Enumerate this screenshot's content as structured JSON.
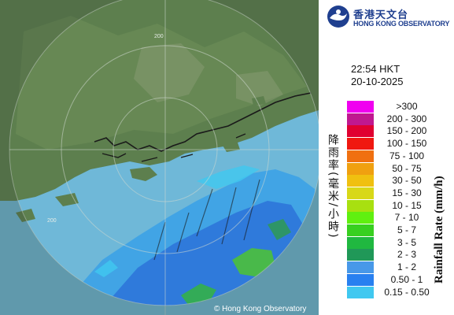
{
  "header": {
    "logo_zh": "香港天文台",
    "logo_en": "HONG KONG OBSERVATORY"
  },
  "timestamp": {
    "time": "22:54 HKT",
    "date": "20-10-2025"
  },
  "map": {
    "range_ring_label": "200",
    "copyright": "© Hong Kong Observatory"
  },
  "legend": {
    "title_zh": "降雨率(毫米/小時)",
    "title_en": "Rainfall Rate (mm/h)",
    "items": [
      {
        "label": ">300",
        "color": "#f000f0"
      },
      {
        "label": "200 - 300",
        "color": "#c01890"
      },
      {
        "label": "150 - 200",
        "color": "#e00030"
      },
      {
        "label": "100 - 150",
        "color": "#f01810"
      },
      {
        "label": "75 - 100",
        "color": "#f07010"
      },
      {
        "label": "50 - 75",
        "color": "#f0a010"
      },
      {
        "label": "30 - 50",
        "color": "#f0c010"
      },
      {
        "label": "15 - 30",
        "color": "#d8d818"
      },
      {
        "label": "10 - 15",
        "color": "#a8e010"
      },
      {
        "label": "7 - 10",
        "color": "#60f010"
      },
      {
        "label": "5 - 7",
        "color": "#38d020"
      },
      {
        "label": "3 - 5",
        "color": "#20b840"
      },
      {
        "label": "2 - 3",
        "color": "#209858"
      },
      {
        "label": "1 - 2",
        "color": "#4898e8"
      },
      {
        "label": "0.50 - 1",
        "color": "#2880f0"
      },
      {
        "label": "0.15 - 0.50",
        "color": "#40c8f0"
      }
    ]
  },
  "colors": {
    "logo_blue": "#1f3f8f",
    "sea": "#6fb8d8",
    "land": "#5a7a4a"
  }
}
